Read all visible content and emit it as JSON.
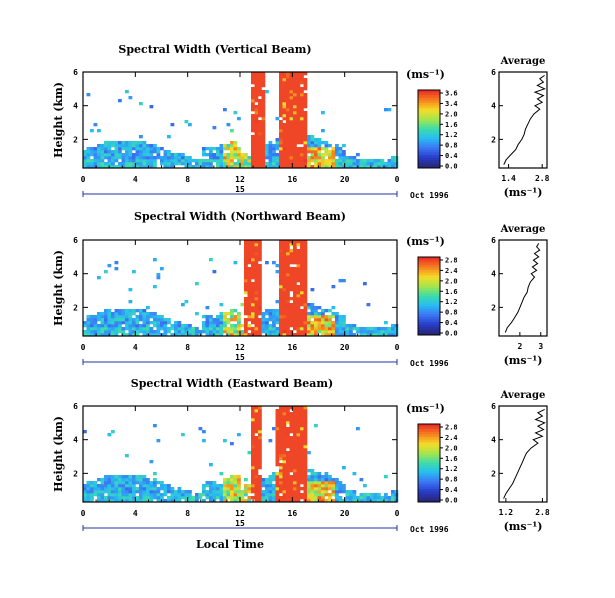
{
  "chart_data": [
    {
      "type": "heatmap",
      "title": "Spectral Width (Vertical Beam)",
      "ylabel": "Height (km)",
      "xticks": [
        "0",
        "4",
        "8",
        "12",
        "16",
        "20",
        "0"
      ],
      "yticks": [
        "2",
        "4",
        "6"
      ],
      "xlim": [
        0,
        24
      ],
      "ylim": [
        0.3,
        6
      ],
      "day_label": "15",
      "date_label": "Oct 1996",
      "colorbar": {
        "unit": "(ms⁻¹)",
        "ticks": [
          "3.6",
          "3.4",
          "2.0",
          "1.6",
          "1.2",
          "0.8",
          "0.4",
          "0.0"
        ]
      },
      "profile": {
        "title": "Average",
        "xlabel": "(ms⁻¹)",
        "xticks": [
          "1.4",
          "2.8"
        ],
        "yticks": [
          "2",
          "4",
          "6"
        ],
        "xlim": [
          1.0,
          3.0
        ],
        "ylim": [
          0.3,
          6
        ],
        "height": [
          0.5,
          0.8,
          1.1,
          1.4,
          1.7,
          2.0,
          2.3,
          2.6,
          2.9,
          3.2,
          3.5,
          3.8,
          4.0,
          4.2,
          4.4,
          4.6,
          4.8,
          5.0,
          5.2,
          5.4,
          5.6,
          5.8
        ],
        "width": [
          1.2,
          1.3,
          1.5,
          1.7,
          1.8,
          1.95,
          2.05,
          2.1,
          2.2,
          2.3,
          2.45,
          2.7,
          2.5,
          2.8,
          2.6,
          2.85,
          2.5,
          2.9,
          2.6,
          2.85,
          2.7,
          2.9
        ]
      },
      "convective_hours": [
        [
          12.7,
          13.8
        ],
        [
          14.9,
          17.0
        ]
      ]
    },
    {
      "type": "heatmap",
      "title": "Spectral Width (Northward Beam)",
      "ylabel": "Height (km)",
      "xticks": [
        "0",
        "4",
        "8",
        "12",
        "16",
        "20",
        "0"
      ],
      "yticks": [
        "2",
        "4",
        "6"
      ],
      "xlim": [
        0,
        24
      ],
      "ylim": [
        0.3,
        6
      ],
      "day_label": "15",
      "date_label": "Oct 1996",
      "colorbar": {
        "unit": "(ms⁻¹)",
        "ticks": [
          "2.8",
          "2.4",
          "2.0",
          "1.6",
          "1.2",
          "0.8",
          "0.4",
          "0.0"
        ]
      },
      "profile": {
        "title": "Average",
        "xlabel": "(ms⁻¹)",
        "xticks": [
          "2",
          "3"
        ],
        "yticks": [
          "2",
          "4",
          "6"
        ],
        "xlim": [
          1.0,
          3.3
        ],
        "ylim": [
          0.3,
          6
        ],
        "height": [
          0.5,
          0.8,
          1.1,
          1.4,
          1.7,
          2.0,
          2.3,
          2.6,
          2.9,
          3.2,
          3.5,
          3.8,
          4.0,
          4.2,
          4.4,
          4.6,
          4.8,
          5.0,
          5.2,
          5.4,
          5.6,
          5.8
        ],
        "width": [
          1.3,
          1.4,
          1.6,
          1.75,
          1.9,
          2.0,
          2.1,
          2.2,
          2.35,
          2.4,
          2.5,
          2.7,
          2.55,
          2.8,
          2.6,
          2.85,
          2.65,
          2.9,
          2.7,
          2.95,
          2.8,
          2.9
        ]
      },
      "convective_hours": [
        [
          12.3,
          13.6
        ],
        [
          14.9,
          17.0
        ]
      ]
    },
    {
      "type": "heatmap",
      "title": "Spectral Width (Eastward Beam)",
      "ylabel": "Height (km)",
      "xticks": [
        "0",
        "4",
        "8",
        "12",
        "16",
        "20",
        "0"
      ],
      "yticks": [
        "2",
        "4",
        "6"
      ],
      "xlim": [
        0,
        24
      ],
      "ylim": [
        0.3,
        6
      ],
      "day_label": "15",
      "date_label": "Oct 1996",
      "xlabel": "Local Time",
      "colorbar": {
        "unit": "(ms⁻¹)",
        "ticks": [
          "2.8",
          "2.4",
          "2.0",
          "1.6",
          "1.2",
          "0.8",
          "0.4",
          "0.0"
        ]
      },
      "profile": {
        "title": "Average",
        "xlabel": "(ms⁻¹)",
        "xticks": [
          "1.2",
          "2.8"
        ],
        "yticks": [
          "2",
          "4",
          "6"
        ],
        "xlim": [
          0.9,
          3.0
        ],
        "ylim": [
          0.3,
          6
        ],
        "height": [
          0.5,
          0.8,
          1.1,
          1.4,
          1.7,
          2.0,
          2.3,
          2.6,
          2.9,
          3.2,
          3.5,
          3.8,
          4.0,
          4.2,
          4.4,
          4.6,
          4.8,
          5.0,
          5.2,
          5.4,
          5.6,
          5.8
        ],
        "width": [
          1.1,
          1.2,
          1.35,
          1.5,
          1.6,
          1.7,
          1.8,
          1.9,
          2.0,
          2.1,
          2.3,
          2.6,
          2.4,
          2.8,
          2.5,
          2.85,
          2.6,
          2.9,
          2.5,
          2.8,
          2.6,
          2.9
        ]
      },
      "convective_hours": [
        [
          12.7,
          13.5
        ],
        [
          14.5,
          17.0
        ]
      ]
    }
  ]
}
